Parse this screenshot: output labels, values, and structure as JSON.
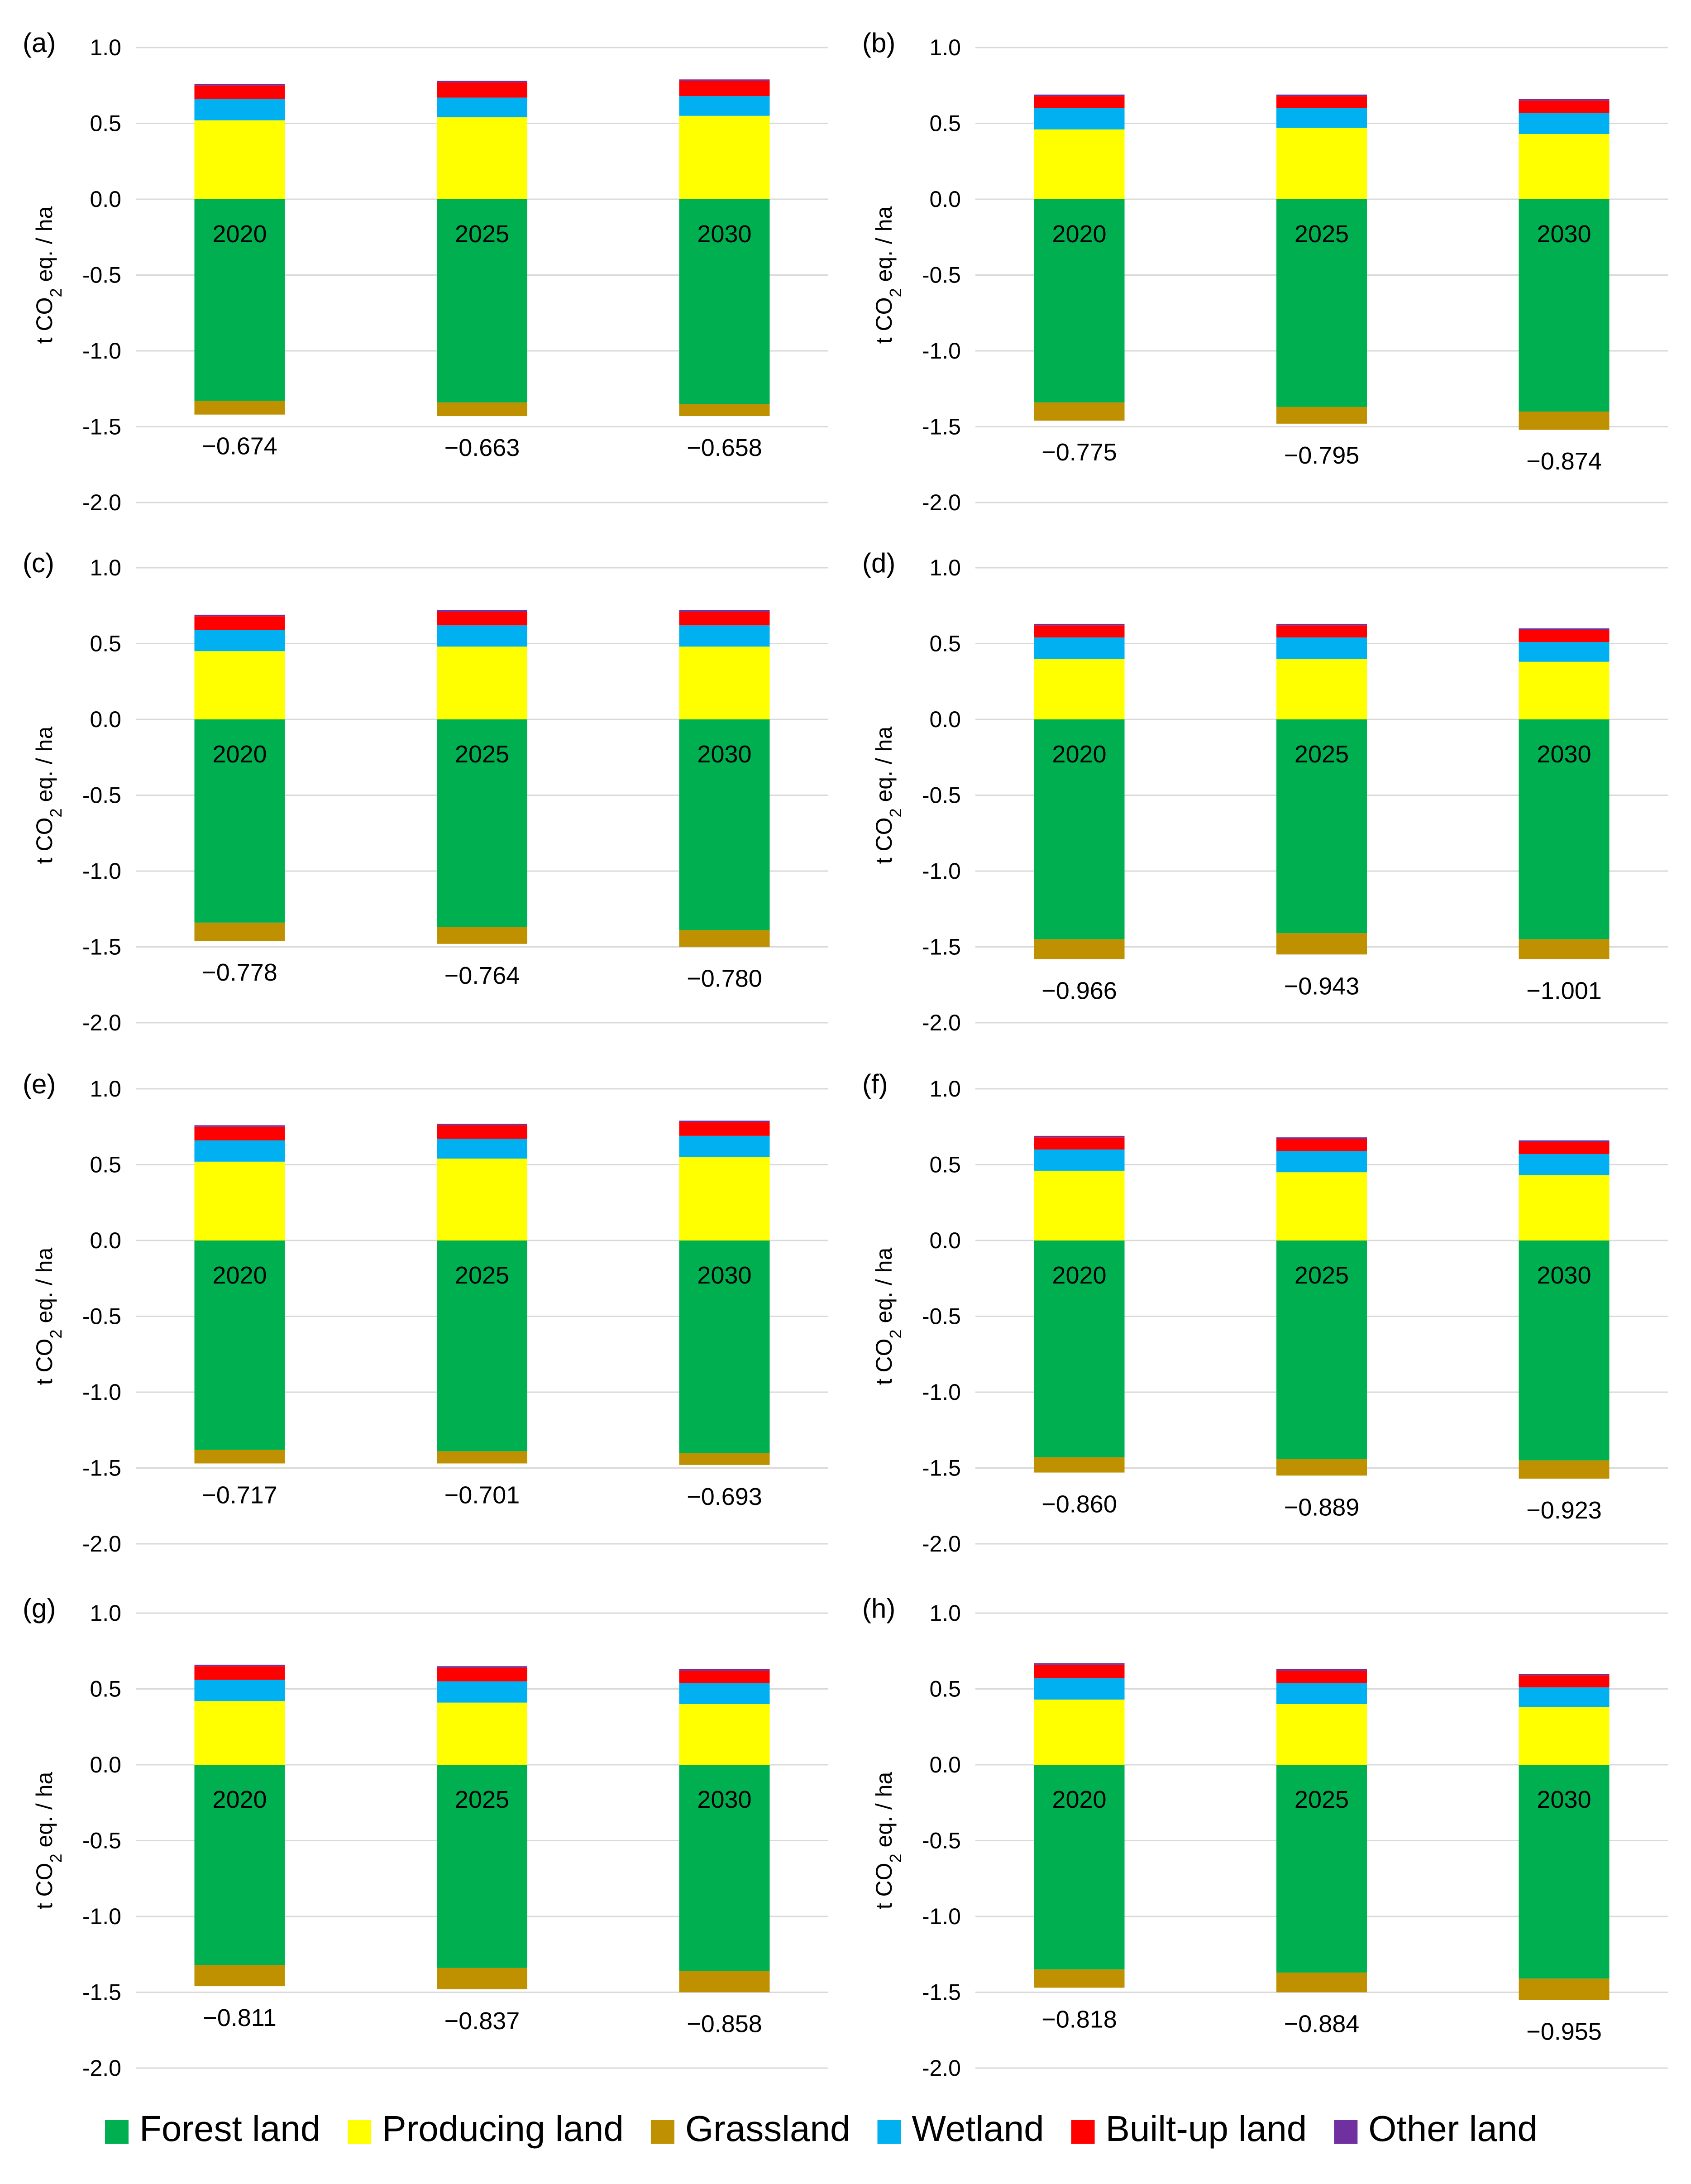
{
  "figure": {
    "legend": [
      {
        "key": "forest",
        "label": "Forest land",
        "color": "#00b050"
      },
      {
        "key": "producing",
        "label": "Producing land",
        "color": "#ffff00"
      },
      {
        "key": "grassland",
        "label": "Grassland",
        "color": "#bf9000"
      },
      {
        "key": "wetland",
        "label": "Wetland",
        "color": "#00b0f0"
      },
      {
        "key": "builtup",
        "label": "Built-up land",
        "color": "#ff0000"
      },
      {
        "key": "other",
        "label": "Other land",
        "color": "#7030a0"
      }
    ]
  },
  "chart_data": [
    {
      "panel": "(a)",
      "type": "bar",
      "stacked": true,
      "ylabel": "t CO2 eq. / ha",
      "ylim": [
        -2.0,
        1.0
      ],
      "yticks": [
        "1.0",
        "0.5",
        "0.0",
        "-0.5",
        "-1.0",
        "-1.5",
        "-2.0"
      ],
      "categories": [
        "2020",
        "2025",
        "2030"
      ],
      "totals": [
        "−0.674",
        "−0.663",
        "−0.658"
      ],
      "series": [
        {
          "name": "Forest land",
          "values": [
            -1.33,
            -1.34,
            -1.35
          ]
        },
        {
          "name": "Grassland",
          "values": [
            -0.09,
            -0.09,
            -0.08
          ]
        },
        {
          "name": "Producing land",
          "values": [
            0.52,
            0.54,
            0.55
          ]
        },
        {
          "name": "Wetland",
          "values": [
            0.14,
            0.13,
            0.13
          ]
        },
        {
          "name": "Built-up land",
          "values": [
            0.09,
            0.1,
            0.1
          ]
        },
        {
          "name": "Other land",
          "values": [
            0.01,
            0.01,
            0.01
          ]
        }
      ]
    },
    {
      "panel": "(b)",
      "type": "bar",
      "stacked": true,
      "ylabel": "t CO2 eq. / ha",
      "ylim": [
        -2.0,
        1.0
      ],
      "yticks": [
        "1.0",
        "0.5",
        "0.0",
        "-0.5",
        "-1.0",
        "-1.5",
        "-2.0"
      ],
      "categories": [
        "2020",
        "2025",
        "2030"
      ],
      "totals": [
        "−0.775",
        "−0.795",
        "−0.874"
      ],
      "series": [
        {
          "name": "Forest land",
          "values": [
            -1.34,
            -1.37,
            -1.4
          ]
        },
        {
          "name": "Grassland",
          "values": [
            -0.12,
            -0.11,
            -0.12
          ]
        },
        {
          "name": "Producing land",
          "values": [
            0.46,
            0.47,
            0.43
          ]
        },
        {
          "name": "Wetland",
          "values": [
            0.14,
            0.13,
            0.14
          ]
        },
        {
          "name": "Built-up land",
          "values": [
            0.08,
            0.08,
            0.08
          ]
        },
        {
          "name": "Other land",
          "values": [
            0.01,
            0.01,
            0.01
          ]
        }
      ]
    },
    {
      "panel": "(c)",
      "type": "bar",
      "stacked": true,
      "ylabel": "t CO2 eq. / ha",
      "ylim": [
        -2.0,
        1.0
      ],
      "yticks": [
        "1.0",
        "0.5",
        "0.0",
        "-0.5",
        "-1.0",
        "-1.5",
        "-2.0"
      ],
      "categories": [
        "2020",
        "2025",
        "2030"
      ],
      "totals": [
        "−0.778",
        "−0.764",
        "−0.780"
      ],
      "series": [
        {
          "name": "Forest land",
          "values": [
            -1.34,
            -1.37,
            -1.39
          ]
        },
        {
          "name": "Grassland",
          "values": [
            -0.12,
            -0.11,
            -0.11
          ]
        },
        {
          "name": "Producing land",
          "values": [
            0.45,
            0.48,
            0.48
          ]
        },
        {
          "name": "Wetland",
          "values": [
            0.14,
            0.14,
            0.14
          ]
        },
        {
          "name": "Built-up land",
          "values": [
            0.09,
            0.09,
            0.09
          ]
        },
        {
          "name": "Other land",
          "values": [
            0.01,
            0.01,
            0.01
          ]
        }
      ]
    },
    {
      "panel": "(d)",
      "type": "bar",
      "stacked": true,
      "ylabel": "t CO2 eq. / ha",
      "ylim": [
        -2.0,
        1.0
      ],
      "yticks": [
        "1.0",
        "0.5",
        "0.0",
        "-0.5",
        "-1.0",
        "-1.5",
        "-2.0"
      ],
      "categories": [
        "2020",
        "2025",
        "2030"
      ],
      "totals": [
        "−0.966",
        "−0.943",
        "−1.001"
      ],
      "series": [
        {
          "name": "Forest land",
          "values": [
            -1.45,
            -1.41,
            -1.45
          ]
        },
        {
          "name": "Grassland",
          "values": [
            -0.13,
            -0.14,
            -0.13
          ]
        },
        {
          "name": "Producing land",
          "values": [
            0.4,
            0.4,
            0.38
          ]
        },
        {
          "name": "Wetland",
          "values": [
            0.14,
            0.14,
            0.13
          ]
        },
        {
          "name": "Built-up land",
          "values": [
            0.08,
            0.08,
            0.08
          ]
        },
        {
          "name": "Other land",
          "values": [
            0.01,
            0.01,
            0.01
          ]
        }
      ]
    },
    {
      "panel": "(e)",
      "type": "bar",
      "stacked": true,
      "ylabel": "t CO2 eq. / ha",
      "ylim": [
        -2.0,
        1.0
      ],
      "yticks": [
        "1.0",
        "0.5",
        "0.0",
        "-0.5",
        "-1.0",
        "-1.5",
        "-2.0"
      ],
      "categories": [
        "2020",
        "2025",
        "2030"
      ],
      "totals": [
        "−0.717",
        "−0.701",
        "−0.693"
      ],
      "series": [
        {
          "name": "Forest land",
          "values": [
            -1.38,
            -1.39,
            -1.4
          ]
        },
        {
          "name": "Grassland",
          "values": [
            -0.09,
            -0.08,
            -0.08
          ]
        },
        {
          "name": "Producing land",
          "values": [
            0.52,
            0.54,
            0.55
          ]
        },
        {
          "name": "Wetland",
          "values": [
            0.14,
            0.13,
            0.14
          ]
        },
        {
          "name": "Built-up land",
          "values": [
            0.09,
            0.09,
            0.09
          ]
        },
        {
          "name": "Other land",
          "values": [
            0.01,
            0.01,
            0.01
          ]
        }
      ]
    },
    {
      "panel": "(f)",
      "type": "bar",
      "stacked": true,
      "ylabel": "t CO2 eq. / ha",
      "ylim": [
        -2.0,
        1.0
      ],
      "yticks": [
        "1.0",
        "0.5",
        "0.0",
        "-0.5",
        "-1.0",
        "-1.5",
        "-2.0"
      ],
      "categories": [
        "2020",
        "2025",
        "2030"
      ],
      "totals": [
        "−0.860",
        "−0.889",
        "−0.923"
      ],
      "series": [
        {
          "name": "Forest land",
          "values": [
            -1.43,
            -1.44,
            -1.45
          ]
        },
        {
          "name": "Grassland",
          "values": [
            -0.1,
            -0.11,
            -0.12
          ]
        },
        {
          "name": "Producing land",
          "values": [
            0.46,
            0.45,
            0.43
          ]
        },
        {
          "name": "Wetland",
          "values": [
            0.14,
            0.14,
            0.14
          ]
        },
        {
          "name": "Built-up land",
          "values": [
            0.08,
            0.08,
            0.08
          ]
        },
        {
          "name": "Other land",
          "values": [
            0.01,
            0.01,
            0.01
          ]
        }
      ]
    },
    {
      "panel": "(g)",
      "type": "bar",
      "stacked": true,
      "ylabel": "t CO2 eq. / ha",
      "ylim": [
        -2.0,
        1.0
      ],
      "yticks": [
        "1.0",
        "0.5",
        "0.0",
        "-0.5",
        "-1.0",
        "-1.5",
        "-2.0"
      ],
      "categories": [
        "2020",
        "2025",
        "2030"
      ],
      "totals": [
        "−0.811",
        "−0.837",
        "−0.858"
      ],
      "series": [
        {
          "name": "Forest land",
          "values": [
            -1.32,
            -1.34,
            -1.36
          ]
        },
        {
          "name": "Grassland",
          "values": [
            -0.14,
            -0.14,
            -0.14
          ]
        },
        {
          "name": "Producing land",
          "values": [
            0.42,
            0.41,
            0.4
          ]
        },
        {
          "name": "Wetland",
          "values": [
            0.14,
            0.14,
            0.14
          ]
        },
        {
          "name": "Built-up land",
          "values": [
            0.09,
            0.09,
            0.08
          ]
        },
        {
          "name": "Other land",
          "values": [
            0.01,
            0.01,
            0.01
          ]
        }
      ]
    },
    {
      "panel": "(h)",
      "type": "bar",
      "stacked": true,
      "ylabel": "t CO2 eq. / ha",
      "ylim": [
        -2.0,
        1.0
      ],
      "yticks": [
        "1.0",
        "0.5",
        "0.0",
        "-0.5",
        "-1.0",
        "-1.5",
        "-2.0"
      ],
      "categories": [
        "2020",
        "2025",
        "2030"
      ],
      "totals": [
        "−0.818",
        "−0.884",
        "−0.955"
      ],
      "series": [
        {
          "name": "Forest land",
          "values": [
            -1.35,
            -1.37,
            -1.41
          ]
        },
        {
          "name": "Grassland",
          "values": [
            -0.12,
            -0.13,
            -0.14
          ]
        },
        {
          "name": "Producing land",
          "values": [
            0.43,
            0.4,
            0.38
          ]
        },
        {
          "name": "Wetland",
          "values": [
            0.14,
            0.14,
            0.13
          ]
        },
        {
          "name": "Built-up land",
          "values": [
            0.09,
            0.08,
            0.08
          ]
        },
        {
          "name": "Other land",
          "values": [
            0.01,
            0.01,
            0.01
          ]
        }
      ]
    }
  ]
}
